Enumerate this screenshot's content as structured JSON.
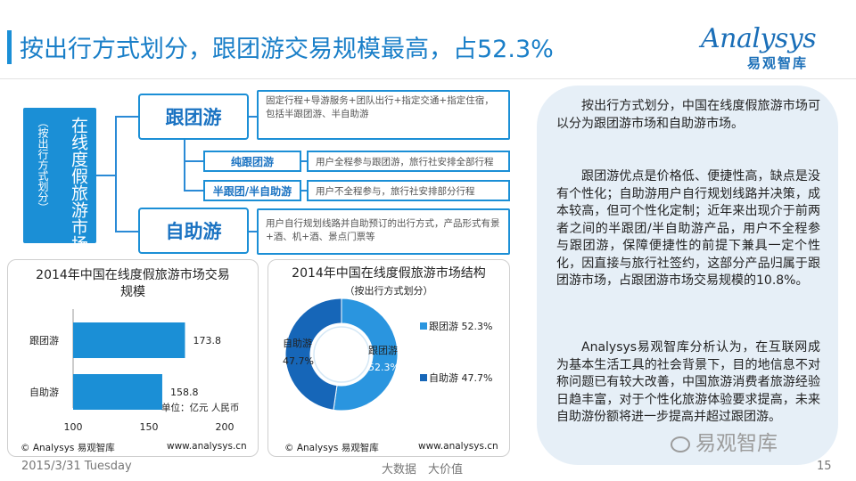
{
  "header": {
    "title": "按出行方式划分，跟团游交易规模最高，占52.3%",
    "logo_word": "Analysys",
    "logo_sub": "易观智库"
  },
  "structure": {
    "main_label": "在线度假旅游市场结构",
    "sub_label": "（按出行方式划分）",
    "categories": [
      {
        "name": "跟团游",
        "desc": "固定行程+导游服务+团队出行+指定交通+指定住宿，包括半跟团游、半自助游"
      },
      {
        "name": "自助游",
        "desc": "用户自行规划线路并自助预订的出行方式，产品形式有景+酒、机+酒、景点门票等"
      }
    ],
    "subtypes": [
      {
        "name": "纯跟团游",
        "desc": "用户全程参与跟团游，旅行社安排全部行程"
      },
      {
        "name": "半跟团/半自助游",
        "desc": "用户不全程参与，旅行社安排部分行程"
      }
    ]
  },
  "chart_data": [
    {
      "type": "bar",
      "orientation": "horizontal",
      "title": "2014年中国在线度假旅游市场交易规模",
      "categories": [
        "跟团游",
        "自助游"
      ],
      "values": [
        173.8,
        158.8
      ],
      "xlim": [
        100,
        200
      ],
      "xticks": [
        "100",
        "150",
        "200"
      ],
      "unit_note": "单位：亿元 人民币",
      "color": "#1b8fd6",
      "source": "© Analysys 易观智库",
      "url": "www.analysys.cn"
    },
    {
      "type": "pie",
      "donut": true,
      "title": "2014年中国在线度假旅游市场结构",
      "subtitle": "（按出行方式划分）",
      "slices": [
        {
          "label": "跟团游",
          "value": 52.3,
          "display": "52.3%",
          "color": "#2a95df"
        },
        {
          "label": "自助游",
          "value": 47.7,
          "display": "47.7%",
          "color": "#1666b8"
        }
      ],
      "legend_position": "right",
      "source": "© Analysys 易观智库",
      "url": "www.analysys.cn"
    }
  ],
  "analysis": {
    "paragraphs": [
      "按出行方式划分，中国在线度假旅游市场可以分为跟团游市场和自助游市场。",
      "跟团游优点是价格低、便捷性高，缺点是没有个性化；自助游用户自行规划线路并决策，成本较高，但可个性化定制；近年来出现介于前两者之间的半跟团/半自助游产品，用户不全程参与跟团游，保障便捷性的前提下兼具一定个性化，因直接与旅行社签约，这部分产品归属于跟团游市场，占跟团游市场交易规模的10.8%。",
      "Analysys易观智库分析认为，在互联网成为基本生活工具的社会背景下，目的地信息不对称问题已有较大改善，中国旅游消费者旅游经验日趋丰富，对于个性化旅游体验要求提高，未来自助游份额将进一步提高并超过跟团游。"
    ]
  },
  "footer": {
    "date": "2015/3/31 Tuesday",
    "center": "大数据　大价值",
    "page": "15",
    "watermark": "易观智库"
  }
}
